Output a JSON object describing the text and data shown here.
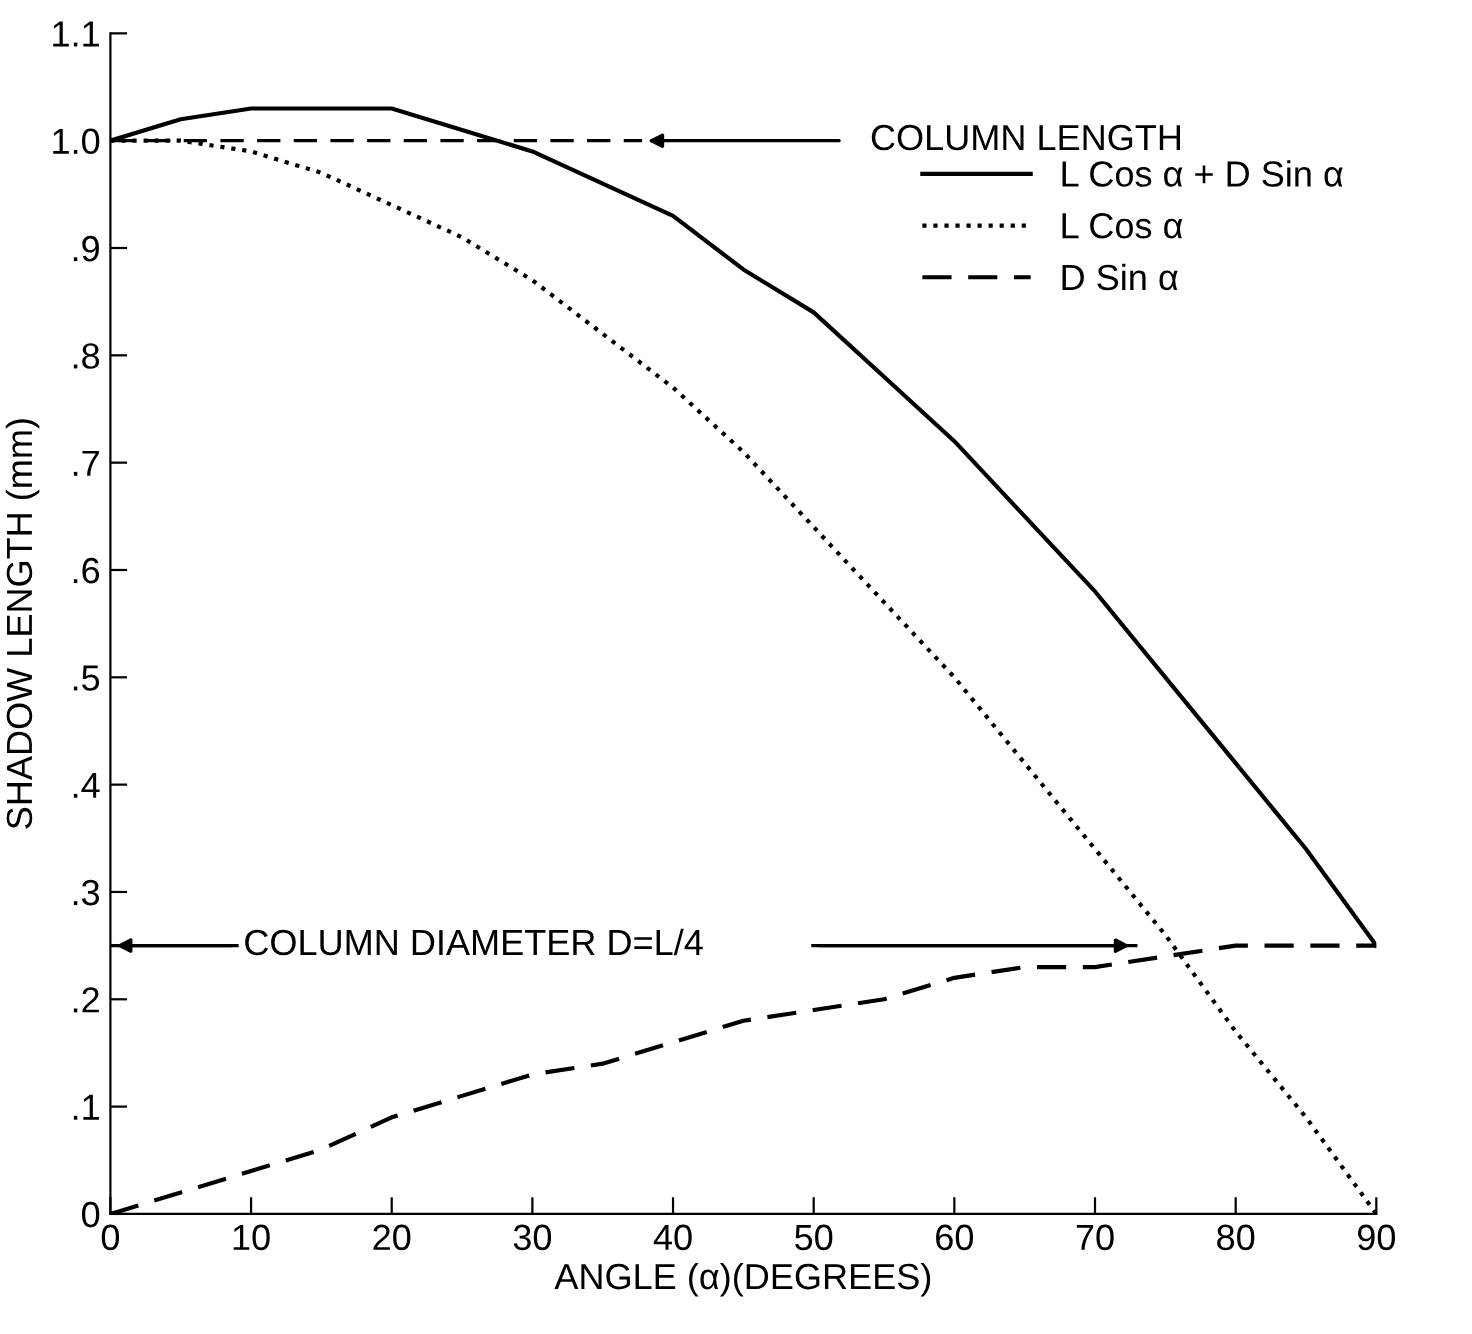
{
  "chart_data": {
    "type": "line",
    "xlabel": "ANGLE (α)(DEGREES)",
    "ylabel": "SHADOW LENGTH (mm)",
    "x": [
      0,
      5,
      10,
      15,
      20,
      25,
      30,
      35,
      40,
      45,
      50,
      55,
      60,
      65,
      70,
      75,
      80,
      85,
      90
    ],
    "series": [
      {
        "name": "L Cos α + D Sin α",
        "color": "#000000",
        "line_style": "solid",
        "values": [
          1.0,
          1.02,
          1.03,
          1.03,
          1.03,
          1.01,
          0.99,
          0.96,
          0.93,
          0.88,
          0.84,
          0.78,
          0.72,
          0.65,
          0.58,
          0.5,
          0.42,
          0.34,
          0.25
        ]
      },
      {
        "name": "L Cos α",
        "color": "#000000",
        "line_style": "dotted",
        "values": [
          1.0,
          1.0,
          0.99,
          0.97,
          0.94,
          0.91,
          0.87,
          0.82,
          0.77,
          0.71,
          0.64,
          0.57,
          0.5,
          0.42,
          0.34,
          0.26,
          0.17,
          0.09,
          0.0
        ]
      },
      {
        "name": "D Sin α",
        "color": "#000000",
        "line_style": "dashed",
        "values": [
          0.0,
          0.02,
          0.04,
          0.06,
          0.09,
          0.11,
          0.13,
          0.14,
          0.16,
          0.18,
          0.19,
          0.2,
          0.22,
          0.23,
          0.23,
          0.24,
          0.25,
          0.25,
          0.25
        ]
      }
    ],
    "xlim": [
      0,
      90
    ],
    "xticks": [
      0,
      10,
      20,
      30,
      40,
      50,
      60,
      70,
      80,
      90
    ],
    "ylim": [
      0,
      1.1
    ],
    "yticks": [
      0,
      {
        "value": 0.1,
        "label": ".1"
      },
      {
        "value": 0.2,
        "label": ".2"
      },
      {
        "value": 0.3,
        "label": ".3"
      },
      {
        "value": 0.4,
        "label": ".4"
      },
      {
        "value": 0.5,
        "label": ".5"
      },
      {
        "value": 0.6,
        "label": ".6"
      },
      {
        "value": 0.7,
        "label": ".7"
      },
      {
        "value": 0.8,
        "label": ".8"
      },
      {
        "value": 0.9,
        "label": ".9"
      },
      {
        "value": 1.0,
        "label": "1.0"
      },
      {
        "value": 1.1,
        "label": "1.1"
      }
    ],
    "ref_lines": [
      {
        "axis": "y",
        "value": 1.0,
        "label": "COLUMN LENGTH",
        "line_style": "dashed"
      },
      {
        "axis": "y",
        "value": 0.25,
        "label": "COLUMN DIAMETER D=L/4",
        "line_style": "solid"
      }
    ],
    "legend": "top right",
    "grid": false,
    "marker": "none"
  }
}
